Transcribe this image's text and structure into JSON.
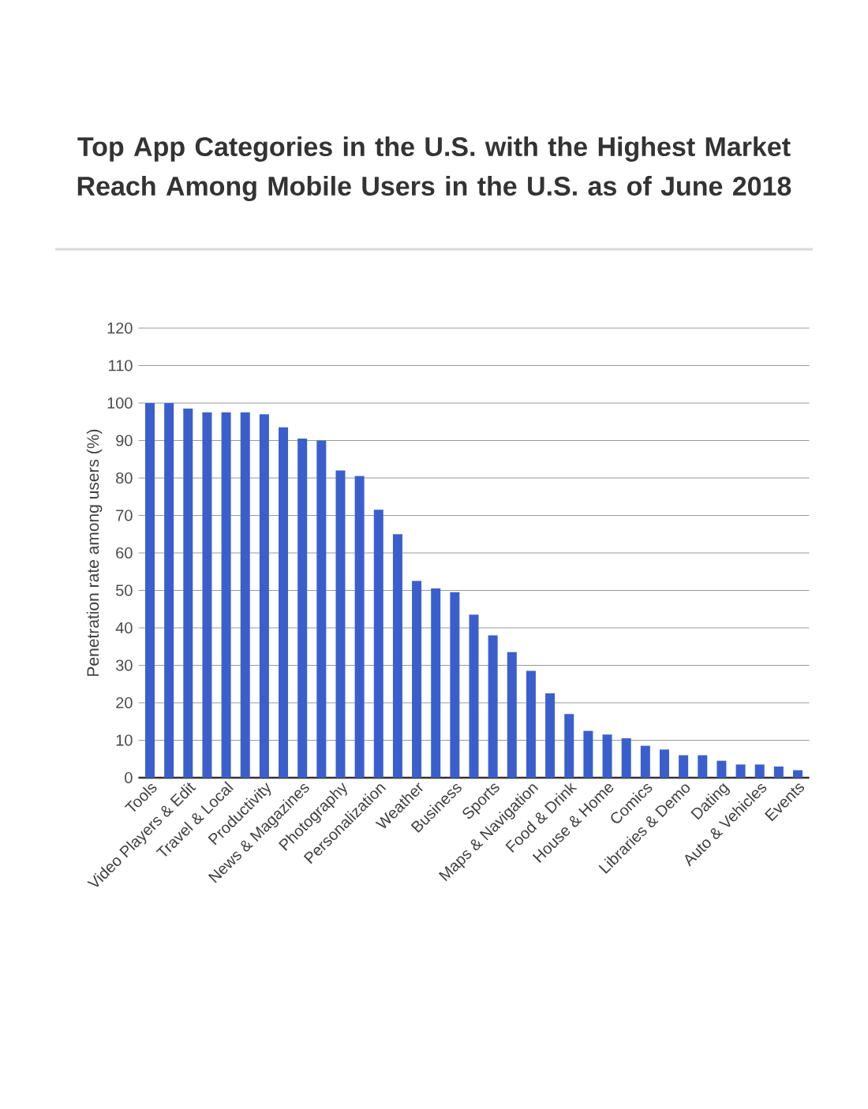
{
  "chart_data": {
    "type": "bar",
    "title": "Top App Categories in the U.S. with the Highest Market Reach Among Mobile Users in the U.S. as of June 2018",
    "ylabel": "Penetration rate among users (%)",
    "categories": [
      "Tools",
      null,
      "Video Players & Edit",
      null,
      "Travel & Local",
      null,
      "Productivity",
      null,
      "News & Magazines",
      null,
      "Photography",
      null,
      "Personalization",
      null,
      "Weather",
      null,
      "Business",
      null,
      "Sports",
      null,
      "Maps & Navigation",
      null,
      "Food & Drink",
      null,
      "House & Home",
      null,
      "Comics",
      null,
      "Libraries & Demo",
      null,
      "Dating",
      null,
      "Auto & Vehicles",
      null,
      "Events"
    ],
    "values": [
      100,
      100,
      98.5,
      97.5,
      97.5,
      97.5,
      97,
      93.5,
      90.5,
      90,
      82,
      80.5,
      71.5,
      65,
      52.5,
      50.5,
      49.5,
      43.5,
      38,
      33.5,
      28.5,
      22.5,
      17,
      12.5,
      11.5,
      10.5,
      8.5,
      7.5,
      6,
      6,
      4.5,
      3.5,
      3.5,
      3,
      2
    ],
    "color": "#3a5fcd",
    "ylim": [
      0,
      120
    ],
    "yticks": [
      0,
      10,
      20,
      30,
      40,
      50,
      60,
      70,
      80,
      90,
      100,
      110,
      120
    ],
    "grid": "y"
  }
}
